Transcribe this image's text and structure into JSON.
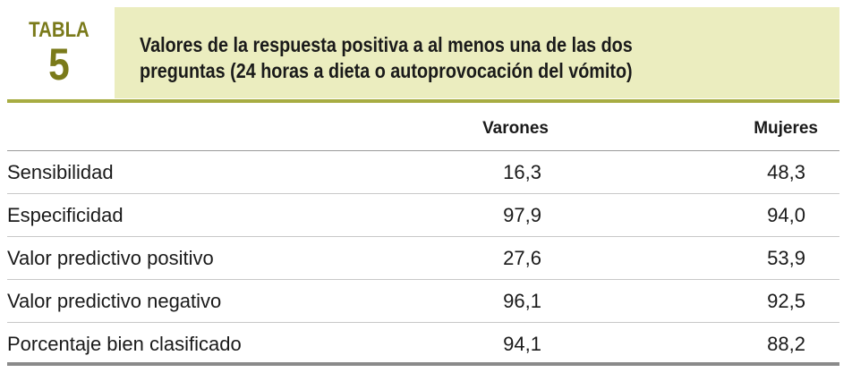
{
  "header": {
    "tag_word": "TABLA",
    "tag_number": "5",
    "title_line1": "Valores de la respuesta positiva a al menos una de las dos",
    "title_line2": "preguntas (24 horas a dieta o autoprovocación del vómito)"
  },
  "table": {
    "columns": [
      "",
      "Varones",
      "Mujeres"
    ],
    "rows": [
      {
        "label": "Sensibilidad",
        "varones": "16,3",
        "mujeres": "48,3"
      },
      {
        "label": "Especificidad",
        "varones": "97,9",
        "mujeres": "94,0"
      },
      {
        "label": "Valor predictivo positivo",
        "varones": "27,6",
        "mujeres": "53,9"
      },
      {
        "label": "Valor predictivo negativo",
        "varones": "96,1",
        "mujeres": "92,5"
      },
      {
        "label": "Porcentaje bien clasificado",
        "varones": "94,1",
        "mujeres": "88,2"
      }
    ]
  },
  "colors": {
    "olive_text": "#7a7a1a",
    "title_background": "#ebedbf",
    "olive_rule": "#a7ac42"
  }
}
